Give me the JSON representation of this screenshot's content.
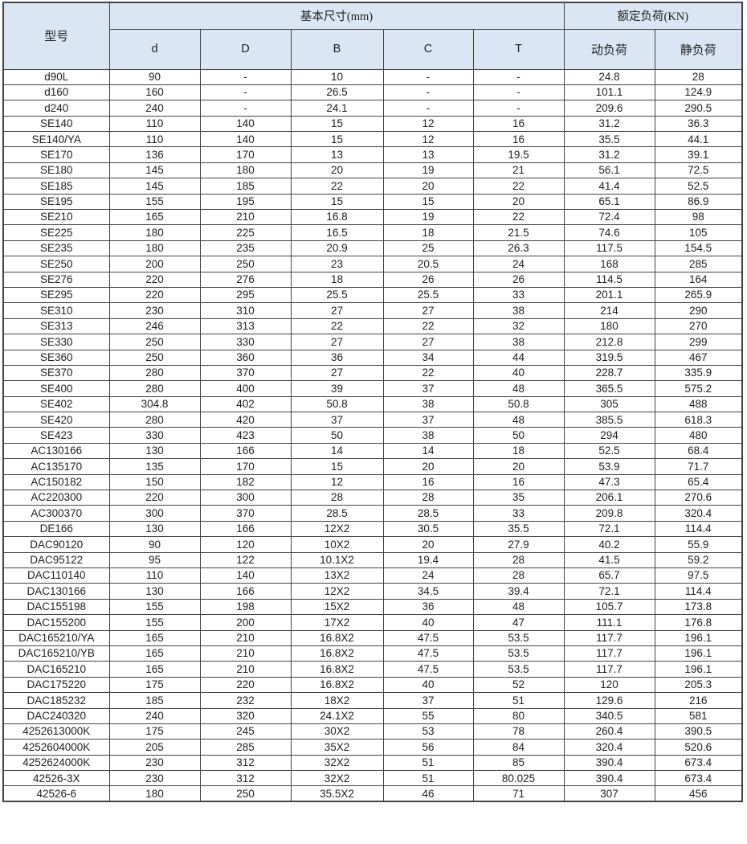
{
  "colors": {
    "header_bg": "#dae6f3",
    "border": "#434343",
    "text": "#1f1f1f"
  },
  "table": {
    "header": {
      "model": "型号",
      "dims_group": "基本尺寸(mm)",
      "dims": [
        "d",
        "D",
        "B",
        "C",
        "T"
      ],
      "load_group": "额定负荷(KN)",
      "loads": [
        "动负荷",
        "静负荷"
      ]
    },
    "rows": [
      [
        "d90L",
        "90",
        "-",
        "10",
        "-",
        "-",
        "24.8",
        "28"
      ],
      [
        "d160",
        "160",
        "-",
        "26.5",
        "-",
        "-",
        "101.1",
        "124.9"
      ],
      [
        "d240",
        "240",
        "-",
        "24.1",
        "-",
        "-",
        "209.6",
        "290.5"
      ],
      [
        "SE140",
        "110",
        "140",
        "15",
        "12",
        "16",
        "31.2",
        "36.3"
      ],
      [
        "SE140/YA",
        "110",
        "140",
        "15",
        "12",
        "16",
        "35.5",
        "44.1"
      ],
      [
        "SE170",
        "136",
        "170",
        "13",
        "13",
        "19.5",
        "31.2",
        "39.1"
      ],
      [
        "SE180",
        "145",
        "180",
        "20",
        "19",
        "21",
        "56.1",
        "72.5"
      ],
      [
        "SE185",
        "145",
        "185",
        "22",
        "20",
        "22",
        "41.4",
        "52.5"
      ],
      [
        "SE195",
        "155",
        "195",
        "15",
        "15",
        "20",
        "65.1",
        "86.9"
      ],
      [
        "SE210",
        "165",
        "210",
        "16.8",
        "19",
        "22",
        "72.4",
        "98"
      ],
      [
        "SE225",
        "180",
        "225",
        "16.5",
        "18",
        "21.5",
        "74.6",
        "105"
      ],
      [
        "SE235",
        "180",
        "235",
        "20.9",
        "25",
        "26.3",
        "117.5",
        "154.5"
      ],
      [
        "SE250",
        "200",
        "250",
        "23",
        "20.5",
        "24",
        "168",
        "285"
      ],
      [
        "SE276",
        "220",
        "276",
        "18",
        "26",
        "26",
        "114.5",
        "164"
      ],
      [
        "SE295",
        "220",
        "295",
        "25.5",
        "25.5",
        "33",
        "201.1",
        "265.9"
      ],
      [
        "SE310",
        "230",
        "310",
        "27",
        "27",
        "38",
        "214",
        "290"
      ],
      [
        "SE313",
        "246",
        "313",
        "22",
        "22",
        "32",
        "180",
        "270"
      ],
      [
        "SE330",
        "250",
        "330",
        "27",
        "27",
        "38",
        "212.8",
        "299"
      ],
      [
        "SE360",
        "250",
        "360",
        "36",
        "34",
        "44",
        "319.5",
        "467"
      ],
      [
        "SE370",
        "280",
        "370",
        "27",
        "22",
        "40",
        "228.7",
        "335.9"
      ],
      [
        "SE400",
        "280",
        "400",
        "39",
        "37",
        "48",
        "365.5",
        "575.2"
      ],
      [
        "SE402",
        "304.8",
        "402",
        "50.8",
        "38",
        "50.8",
        "305",
        "488"
      ],
      [
        "SE420",
        "280",
        "420",
        "37",
        "37",
        "48",
        "385.5",
        "618.3"
      ],
      [
        "SE423",
        "330",
        "423",
        "50",
        "38",
        "50",
        "294",
        "480"
      ],
      [
        "AC130166",
        "130",
        "166",
        "14",
        "14",
        "18",
        "52.5",
        "68.4"
      ],
      [
        "AC135170",
        "135",
        "170",
        "15",
        "20",
        "20",
        "53.9",
        "71.7"
      ],
      [
        "AC150182",
        "150",
        "182",
        "12",
        "16",
        "16",
        "47.3",
        "65.4"
      ],
      [
        "AC220300",
        "220",
        "300",
        "28",
        "28",
        "35",
        "206.1",
        "270.6"
      ],
      [
        "AC300370",
        "300",
        "370",
        "28.5",
        "28.5",
        "33",
        "209.8",
        "320.4"
      ],
      [
        "DE166",
        "130",
        "166",
        "12X2",
        "30.5",
        "35.5",
        "72.1",
        "114.4"
      ],
      [
        "DAC90120",
        "90",
        "120",
        "10X2",
        "20",
        "27.9",
        "40.2",
        "55.9"
      ],
      [
        "DAC95122",
        "95",
        "122",
        "10.1X2",
        "19.4",
        "28",
        "41.5",
        "59.2"
      ],
      [
        "DAC110140",
        "110",
        "140",
        "13X2",
        "24",
        "28",
        "65.7",
        "97.5"
      ],
      [
        "DAC130166",
        "130",
        "166",
        "12X2",
        "34.5",
        "39.4",
        "72.1",
        "114.4"
      ],
      [
        "DAC155198",
        "155",
        "198",
        "15X2",
        "36",
        "48",
        "105.7",
        "173.8"
      ],
      [
        "DAC155200",
        "155",
        "200",
        "17X2",
        "40",
        "47",
        "111.1",
        "176.8"
      ],
      [
        "DAC165210/YA",
        "165",
        "210",
        "16.8X2",
        "47.5",
        "53.5",
        "117.7",
        "196.1"
      ],
      [
        "DAC165210/YB",
        "165",
        "210",
        "16.8X2",
        "47.5",
        "53.5",
        "117.7",
        "196.1"
      ],
      [
        "DAC165210",
        "165",
        "210",
        "16.8X2",
        "47.5",
        "53.5",
        "117.7",
        "196.1"
      ],
      [
        "DAC175220",
        "175",
        "220",
        "16.8X2",
        "40",
        "52",
        "120",
        "205.3"
      ],
      [
        "DAC185232",
        "185",
        "232",
        "18X2",
        "37",
        "51",
        "129.6",
        "216"
      ],
      [
        "DAC240320",
        "240",
        "320",
        "24.1X2",
        "55",
        "80",
        "340.5",
        "581"
      ],
      [
        "4252613000K",
        "175",
        "245",
        "30X2",
        "53",
        "78",
        "260.4",
        "390.5"
      ],
      [
        "4252604000K",
        "205",
        "285",
        "35X2",
        "56",
        "84",
        "320.4",
        "520.6"
      ],
      [
        "4252624000K",
        "230",
        "312",
        "32X2",
        "51",
        "85",
        "390.4",
        "673.4"
      ],
      [
        "42526-3X",
        "230",
        "312",
        "32X2",
        "51",
        "80.025",
        "390.4",
        "673.4"
      ],
      [
        "42526-6",
        "180",
        "250",
        "35.5X2",
        "46",
        "71",
        "307",
        "456"
      ]
    ]
  }
}
